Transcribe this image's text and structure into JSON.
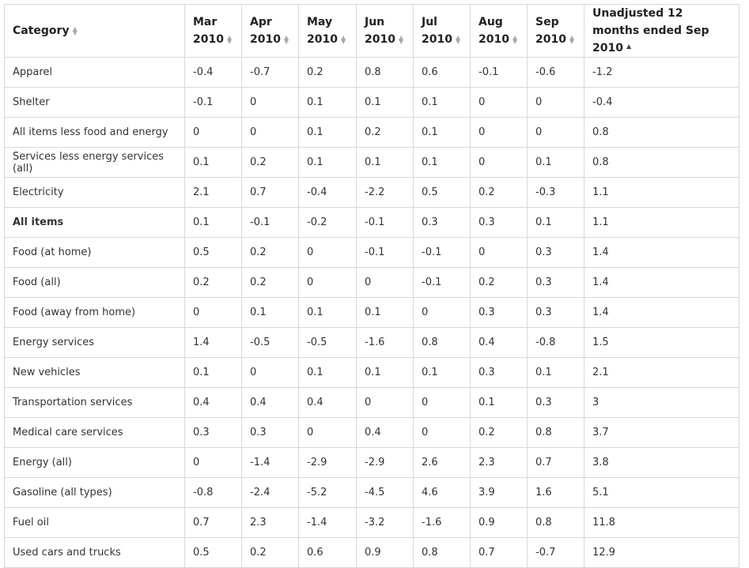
{
  "chart_data": {
    "type": "table",
    "columns": [
      {
        "label": "Category",
        "sort": "both"
      },
      {
        "label": "Mar 2010",
        "sort": "both"
      },
      {
        "label": "Apr 2010",
        "sort": "both"
      },
      {
        "label": "May 2010",
        "sort": "both"
      },
      {
        "label": "Jun 2010",
        "sort": "both"
      },
      {
        "label": "Jul 2010",
        "sort": "both"
      },
      {
        "label": "Aug 2010",
        "sort": "both"
      },
      {
        "label": "Sep 2010",
        "sort": "both"
      },
      {
        "label": "Unadjusted 12 months ended Sep 2010",
        "sort": "asc"
      }
    ],
    "rows": [
      {
        "category": "Apparel",
        "bold": false,
        "values": [
          "-0.4",
          "-0.7",
          "0.2",
          "0.8",
          "0.6",
          "-0.1",
          "-0.6",
          "-1.2"
        ]
      },
      {
        "category": "Shelter",
        "bold": false,
        "values": [
          "-0.1",
          "0",
          "0.1",
          "0.1",
          "0.1",
          "0",
          "0",
          "-0.4"
        ]
      },
      {
        "category": "All items less food and energy",
        "bold": false,
        "values": [
          "0",
          "0",
          "0.1",
          "0.2",
          "0.1",
          "0",
          "0",
          "0.8"
        ]
      },
      {
        "category": "Services less energy services (all)",
        "bold": false,
        "values": [
          "0.1",
          "0.2",
          "0.1",
          "0.1",
          "0.1",
          "0",
          "0.1",
          "0.8"
        ]
      },
      {
        "category": "Electricity",
        "bold": false,
        "values": [
          "2.1",
          "0.7",
          "-0.4",
          "-2.2",
          "0.5",
          "0.2",
          "-0.3",
          "1.1"
        ]
      },
      {
        "category": "All items",
        "bold": true,
        "values": [
          "0.1",
          "-0.1",
          "-0.2",
          "-0.1",
          "0.3",
          "0.3",
          "0.1",
          "1.1"
        ]
      },
      {
        "category": "Food (at home)",
        "bold": false,
        "values": [
          "0.5",
          "0.2",
          "0",
          "-0.1",
          "-0.1",
          "0",
          "0.3",
          "1.4"
        ]
      },
      {
        "category": "Food (all)",
        "bold": false,
        "values": [
          "0.2",
          "0.2",
          "0",
          "0",
          "-0.1",
          "0.2",
          "0.3",
          "1.4"
        ]
      },
      {
        "category": "Food (away from home)",
        "bold": false,
        "values": [
          "0",
          "0.1",
          "0.1",
          "0.1",
          "0",
          "0.3",
          "0.3",
          "1.4"
        ]
      },
      {
        "category": "Energy services",
        "bold": false,
        "values": [
          "1.4",
          "-0.5",
          "-0.5",
          "-1.6",
          "0.8",
          "0.4",
          "-0.8",
          "1.5"
        ]
      },
      {
        "category": "New vehicles",
        "bold": false,
        "values": [
          "0.1",
          "0",
          "0.1",
          "0.1",
          "0.1",
          "0.3",
          "0.1",
          "2.1"
        ]
      },
      {
        "category": "Transportation services",
        "bold": false,
        "values": [
          "0.4",
          "0.4",
          "0.4",
          "0",
          "0",
          "0.1",
          "0.3",
          "3"
        ]
      },
      {
        "category": "Medical care services",
        "bold": false,
        "values": [
          "0.3",
          "0.3",
          "0",
          "0.4",
          "0",
          "0.2",
          "0.8",
          "3.7"
        ]
      },
      {
        "category": "Energy (all)",
        "bold": false,
        "values": [
          "0",
          "-1.4",
          "-2.9",
          "-2.9",
          "2.6",
          "2.3",
          "0.7",
          "3.8"
        ]
      },
      {
        "category": "Gasoline (all types)",
        "bold": false,
        "values": [
          "-0.8",
          "-2.4",
          "-5.2",
          "-4.5",
          "4.6",
          "3.9",
          "1.6",
          "5.1"
        ]
      },
      {
        "category": "Fuel oil",
        "bold": false,
        "values": [
          "0.7",
          "2.3",
          "-1.4",
          "-3.2",
          "-1.6",
          "0.9",
          "0.8",
          "11.8"
        ]
      },
      {
        "category": "Used cars and trucks",
        "bold": false,
        "values": [
          "0.5",
          "0.2",
          "0.6",
          "0.9",
          "0.8",
          "0.7",
          "-0.7",
          "12.9"
        ]
      }
    ]
  }
}
